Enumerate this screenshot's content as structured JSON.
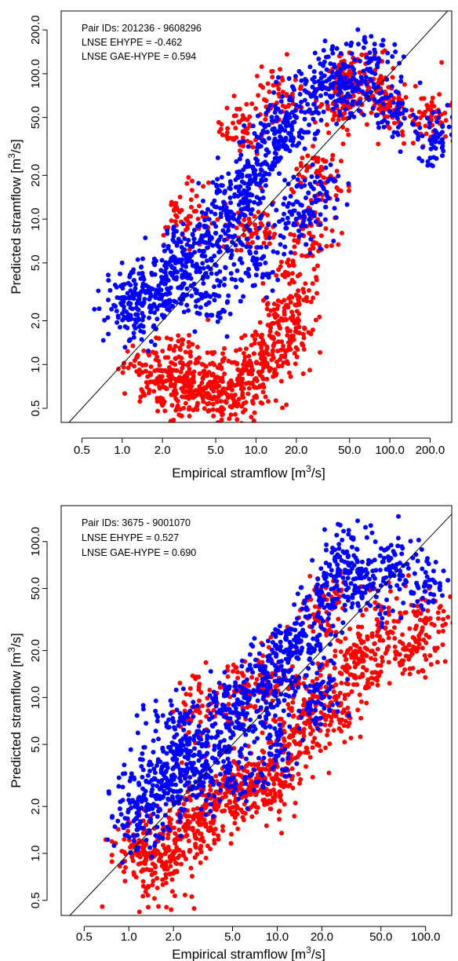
{
  "chart_data": [
    {
      "type": "scatter",
      "log_x": true,
      "log_y": true,
      "xlabel": "Empirical stramflow [m3/s]",
      "xlabel_parts": [
        "Empirical stramflow [m",
        "3",
        "/s]"
      ],
      "ylabel": "Predicted stramflow [m3/s]",
      "ylabel_parts": [
        "Predicted stramflow [m",
        "3",
        "/s]"
      ],
      "xlim": [
        0.35,
        290
      ],
      "ylim": [
        0.4,
        270
      ],
      "x_ticks": [
        0.5,
        1.0,
        2.0,
        5.0,
        10.0,
        20.0,
        50.0,
        100.0,
        200.0
      ],
      "x_tick_labels": [
        "0.5",
        "1.0",
        "2.0",
        "5.0",
        "10.0",
        "20.0",
        "50.0",
        "100.0",
        "200.0"
      ],
      "y_ticks": [
        0.5,
        1.0,
        2.0,
        5.0,
        10.0,
        20.0,
        50.0,
        100.0,
        200.0
      ],
      "y_tick_labels": [
        "0.5",
        "1.0",
        "2.0",
        "5.0",
        "10.0",
        "20.0",
        "50.0",
        "100.0",
        "200.0"
      ],
      "annotations": [
        "Pair IDs: 201236 - 9608296",
        "LNSE EHYPE = -0.462",
        "LNSE GAE-HYPE = 0.594"
      ],
      "reference_line": "1:1",
      "grid": false,
      "series": [
        {
          "color": "#ff0000",
          "points": [
            {
              "x": 1.5,
              "y": 0.9
            },
            {
              "x": 2.0,
              "y": 0.75
            },
            {
              "x": 2.5,
              "y": 1.1
            },
            {
              "x": 3.0,
              "y": 0.6
            },
            {
              "x": 4.0,
              "y": 0.8
            },
            {
              "x": 5.0,
              "y": 0.7
            },
            {
              "x": 6.0,
              "y": 0.55
            },
            {
              "x": 8.0,
              "y": 0.9
            },
            {
              "x": 10.0,
              "y": 0.8
            },
            {
              "x": 12.0,
              "y": 1.2
            },
            {
              "x": 15.0,
              "y": 2.0
            },
            {
              "x": 18.0,
              "y": 1.5
            },
            {
              "x": 20.0,
              "y": 3.0
            },
            {
              "x": 25.0,
              "y": 8.0
            },
            {
              "x": 30.0,
              "y": 20.0
            },
            {
              "x": 40.0,
              "y": 60.0
            },
            {
              "x": 50.0,
              "y": 90.0
            },
            {
              "x": 70.0,
              "y": 80.0
            },
            {
              "x": 100.0,
              "y": 60.0
            },
            {
              "x": 200.0,
              "y": 50.0
            },
            {
              "x": 8.0,
              "y": 40.0
            },
            {
              "x": 15.0,
              "y": 70.0
            },
            {
              "x": 3.0,
              "y": 10.0
            },
            {
              "x": 10.0,
              "y": 8.0
            }
          ]
        },
        {
          "color": "#0000ff",
          "points": [
            {
              "x": 1.0,
              "y": 2.6
            },
            {
              "x": 1.3,
              "y": 2.2
            },
            {
              "x": 1.5,
              "y": 3.5
            },
            {
              "x": 2.0,
              "y": 3.0
            },
            {
              "x": 2.5,
              "y": 5.0
            },
            {
              "x": 3.0,
              "y": 4.0
            },
            {
              "x": 4.0,
              "y": 6.0
            },
            {
              "x": 5.0,
              "y": 8.0
            },
            {
              "x": 6.0,
              "y": 12.0
            },
            {
              "x": 8.0,
              "y": 15.0
            },
            {
              "x": 10.0,
              "y": 20.0
            },
            {
              "x": 12.0,
              "y": 30.0
            },
            {
              "x": 15.0,
              "y": 40.0
            },
            {
              "x": 20.0,
              "y": 50.0
            },
            {
              "x": 30.0,
              "y": 80.0
            },
            {
              "x": 40.0,
              "y": 100.0
            },
            {
              "x": 50.0,
              "y": 70.0
            },
            {
              "x": 70.0,
              "y": 120.0
            },
            {
              "x": 100.0,
              "y": 55.0
            },
            {
              "x": 200.0,
              "y": 35.0
            },
            {
              "x": 20.0,
              "y": 10.0
            },
            {
              "x": 30.0,
              "y": 15.0
            },
            {
              "x": 10.0,
              "y": 5.0
            },
            {
              "x": 5.0,
              "y": 3.0
            }
          ]
        }
      ]
    },
    {
      "type": "scatter",
      "log_x": true,
      "log_y": true,
      "xlabel": "Empirical stramflow [m3/s]",
      "xlabel_parts": [
        "Empirical stramflow [m",
        "3",
        "/s]"
      ],
      "ylabel": "Predicted stramflow [m3/s]",
      "ylabel_parts": [
        "Predicted stramflow [m",
        "3",
        "/s]"
      ],
      "xlim": [
        0.35,
        150
      ],
      "ylim": [
        0.4,
        170
      ],
      "x_ticks": [
        0.5,
        1.0,
        2.0,
        5.0,
        10.0,
        20.0,
        50.0,
        100.0
      ],
      "x_tick_labels": [
        "0.5",
        "1.0",
        "2.0",
        "5.0",
        "10.0",
        "20.0",
        "50.0",
        "100.0"
      ],
      "y_ticks": [
        0.5,
        1.0,
        2.0,
        5.0,
        10.0,
        20.0,
        50.0,
        100.0
      ],
      "y_tick_labels": [
        "0.5",
        "1.0",
        "2.0",
        "5.0",
        "10.0",
        "20.0",
        "50.0",
        "100.0"
      ],
      "annotations": [
        "Pair IDs: 3675 - 9001070",
        "LNSE EHYPE = 0.527",
        "LNSE GAE-HYPE = 0.690"
      ],
      "reference_line": "1:1",
      "grid": false,
      "series": [
        {
          "color": "#ff0000",
          "points": [
            {
              "x": 1.1,
              "y": 1.1
            },
            {
              "x": 1.3,
              "y": 0.9
            },
            {
              "x": 1.5,
              "y": 0.75
            },
            {
              "x": 2.0,
              "y": 1.0
            },
            {
              "x": 2.5,
              "y": 1.5
            },
            {
              "x": 3.0,
              "y": 1.8
            },
            {
              "x": 4.0,
              "y": 2.0
            },
            {
              "x": 5.0,
              "y": 2.5
            },
            {
              "x": 6.0,
              "y": 3.0
            },
            {
              "x": 8.0,
              "y": 2.5
            },
            {
              "x": 10.0,
              "y": 3.0
            },
            {
              "x": 12.0,
              "y": 5.0
            },
            {
              "x": 15.0,
              "y": 6.0
            },
            {
              "x": 20.0,
              "y": 10.0
            },
            {
              "x": 25.0,
              "y": 8.0
            },
            {
              "x": 30.0,
              "y": 20.0
            },
            {
              "x": 40.0,
              "y": 15.0
            },
            {
              "x": 50.0,
              "y": 30.0
            },
            {
              "x": 80.0,
              "y": 20.0
            },
            {
              "x": 100.0,
              "y": 30.0
            },
            {
              "x": 3.0,
              "y": 8.0
            },
            {
              "x": 6.0,
              "y": 12.0
            },
            {
              "x": 10.0,
              "y": 15.0
            },
            {
              "x": 20.0,
              "y": 40.0
            }
          ]
        },
        {
          "color": "#0000ff",
          "points": [
            {
              "x": 1.1,
              "y": 2.0
            },
            {
              "x": 1.2,
              "y": 1.6
            },
            {
              "x": 1.5,
              "y": 3.0
            },
            {
              "x": 2.0,
              "y": 2.5
            },
            {
              "x": 2.0,
              "y": 4.0
            },
            {
              "x": 2.5,
              "y": 5.0
            },
            {
              "x": 3.0,
              "y": 3.0
            },
            {
              "x": 4.0,
              "y": 6.0
            },
            {
              "x": 5.0,
              "y": 8.0
            },
            {
              "x": 6.0,
              "y": 10.0
            },
            {
              "x": 8.0,
              "y": 12.0
            },
            {
              "x": 10.0,
              "y": 15.0
            },
            {
              "x": 12.0,
              "y": 20.0
            },
            {
              "x": 15.0,
              "y": 25.0
            },
            {
              "x": 20.0,
              "y": 40.0
            },
            {
              "x": 25.0,
              "y": 60.0
            },
            {
              "x": 30.0,
              "y": 80.0
            },
            {
              "x": 40.0,
              "y": 50.0
            },
            {
              "x": 60.0,
              "y": 70.0
            },
            {
              "x": 100.0,
              "y": 55.0
            },
            {
              "x": 10.0,
              "y": 5.0
            },
            {
              "x": 20.0,
              "y": 10.0
            },
            {
              "x": 5.0,
              "y": 3.0
            },
            {
              "x": 2.0,
              "y": 7.0
            }
          ]
        }
      ]
    }
  ]
}
